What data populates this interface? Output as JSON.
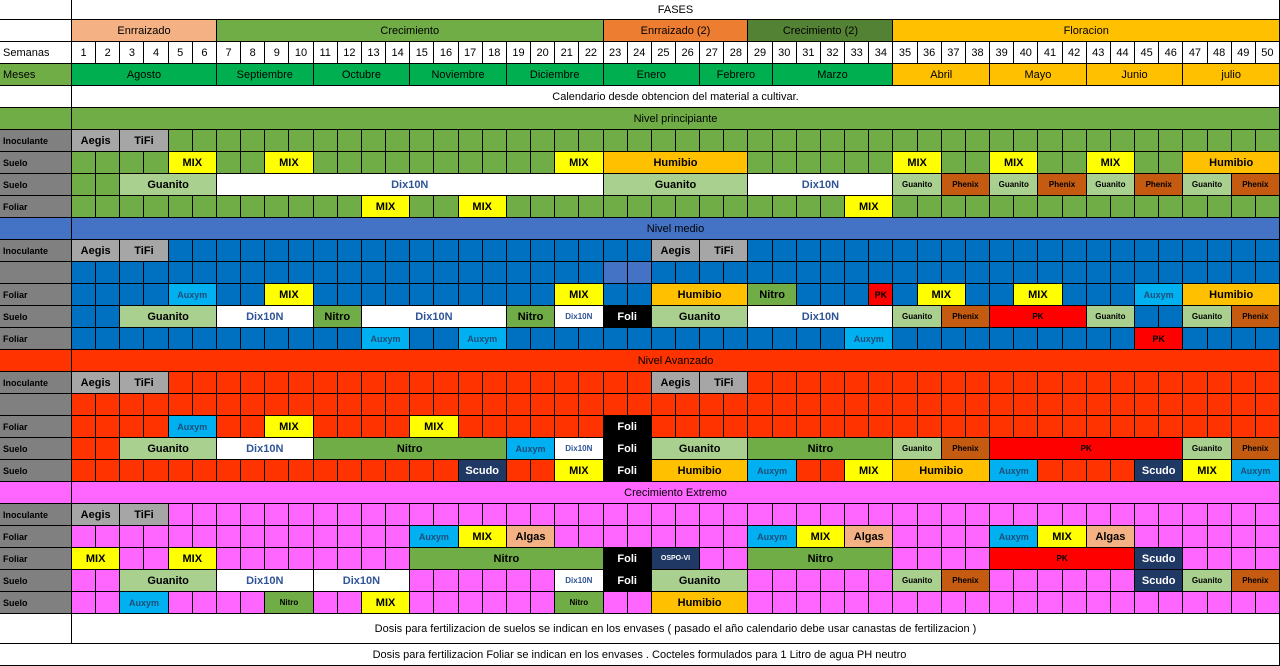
{
  "colors": {
    "enraiz": "#f4b183",
    "crec": "#70ad47",
    "enraiz2": "#ed7d31",
    "crec2": "#548235",
    "flor": "#ffc000",
    "mes_green": "#00b050",
    "gray": "#808080",
    "lightgray": "#a6a6a6",
    "yellow": "#ffff00",
    "orange": "#ffc000",
    "lightgreen": "#a9d08e",
    "white": "#ffffff",
    "blue": "#0070c0",
    "red": "#ff0000",
    "redorange": "#ff3300",
    "darkorange": "#c55a11",
    "pink": "#ff66ff",
    "cyan": "#00b0f0",
    "black": "#000000",
    "navy": "#203864",
    "salmon": "#f4b183",
    "green": "#70ad47"
  },
  "header": {
    "title": "FASES",
    "phases": [
      "Enrraizado",
      "Crecimiento",
      "Enrraizado (2)",
      "Crecimiento (2)",
      "Floracion"
    ],
    "semanas_label": "Semanas",
    "weeks": [
      "1",
      "2",
      "3",
      "4",
      "5",
      "6",
      "7",
      "8",
      "9",
      "10",
      "11",
      "12",
      "13",
      "14",
      "15",
      "16",
      "17",
      "18",
      "19",
      "20",
      "21",
      "22",
      "23",
      "24",
      "25",
      "26",
      "27",
      "28",
      "29",
      "30",
      "31",
      "32",
      "33",
      "34",
      "35",
      "36",
      "37",
      "38",
      "39",
      "40",
      "41",
      "42",
      "43",
      "44",
      "45",
      "46",
      "47",
      "48",
      "49",
      "50"
    ],
    "meses_label": "Meses",
    "months": [
      "Agosto",
      "Septiembre",
      "Octubre",
      "Noviembre",
      "Diciembre",
      "Enero",
      "Febrero",
      "Marzo",
      "Abril",
      "Mayo",
      "Junio",
      "julio"
    ],
    "calendar_note": "Calendario desde obtencion del material a cultivar."
  },
  "sections": {
    "principiante": {
      "title": "Nivel principiante",
      "rows": [
        {
          "label": "Inoculante",
          "bars": [
            {
              "text": "Aegis"
            },
            {
              "text": "TiFi"
            }
          ]
        },
        {
          "label": "Suelo",
          "bars": [
            {
              "text": "MIX"
            },
            {
              "text": "MIX"
            },
            {
              "text": "MIX"
            },
            {
              "text": "Humibio"
            },
            {
              "text": "MIX"
            },
            {
              "text": "MIX"
            },
            {
              "text": "MIX"
            },
            {
              "text": "Humibio"
            }
          ]
        },
        {
          "label": "Suelo",
          "bars": [
            {
              "text": "Guanito"
            },
            {
              "text": "Dix10N"
            },
            {
              "text": "Guanito"
            },
            {
              "text": "Dix10N"
            },
            {
              "text": "Guanito"
            },
            {
              "text": "Phenix"
            },
            {
              "text": "Guanito"
            },
            {
              "text": "Phenix"
            },
            {
              "text": "Guanito"
            },
            {
              "text": "Phenix"
            },
            {
              "text": "Guanito"
            },
            {
              "text": "Phenix"
            }
          ]
        },
        {
          "label": "Foliar",
          "bars": [
            {
              "text": "MIX"
            },
            {
              "text": "MIX"
            },
            {
              "text": "MIX"
            }
          ]
        }
      ]
    },
    "medio": {
      "title": "Nivel medio",
      "rows": [
        {
          "label": "Inoculante",
          "bars": [
            {
              "text": "Aegis"
            },
            {
              "text": "TiFi"
            },
            {
              "text": "Aegis"
            },
            {
              "text": "TiFi"
            }
          ]
        },
        {
          "label": "",
          "bars": []
        },
        {
          "label": "Foliar",
          "bars": [
            {
              "text": "Auxym"
            },
            {
              "text": "MIX"
            },
            {
              "text": "MIX"
            },
            {
              "text": "Humibio"
            },
            {
              "text": "Nitro"
            },
            {
              "text": "PK"
            },
            {
              "text": "MIX"
            },
            {
              "text": "MIX"
            },
            {
              "text": "Auxym"
            },
            {
              "text": "Humibio"
            }
          ]
        },
        {
          "label": "Suelo",
          "bars": [
            {
              "text": "Guanito"
            },
            {
              "text": "Dix10N"
            },
            {
              "text": "Nitro"
            },
            {
              "text": "Dix10N"
            },
            {
              "text": "Nitro"
            },
            {
              "text": "Dix10N"
            },
            {
              "text": "Foli"
            },
            {
              "text": "Guanito"
            },
            {
              "text": "Dix10N"
            },
            {
              "text": "Guanito"
            },
            {
              "text": "Phenix"
            },
            {
              "text": "PK"
            },
            {
              "text": "Guanito"
            },
            {
              "text": "Guanito"
            },
            {
              "text": "Phenix"
            }
          ]
        },
        {
          "label": "Foliar",
          "bars": [
            {
              "text": "Auxym"
            },
            {
              "text": "Auxym"
            },
            {
              "text": "Auxym"
            },
            {
              "text": "PK"
            }
          ]
        }
      ]
    },
    "avanzado": {
      "title": "Nivel Avanzado",
      "rows": [
        {
          "label": "Inoculante",
          "bars": [
            {
              "text": "Aegis"
            },
            {
              "text": "TiFi"
            },
            {
              "text": "Aegis"
            },
            {
              "text": "TiFi"
            }
          ]
        },
        {
          "label": "",
          "bars": []
        },
        {
          "label": "Foliar",
          "bars": [
            {
              "text": "Auxym"
            },
            {
              "text": "MIX"
            },
            {
              "text": "MIX"
            },
            {
              "text": "Foli"
            }
          ]
        },
        {
          "label": "Suelo",
          "bars": [
            {
              "text": "Guanito"
            },
            {
              "text": "Dix10N"
            },
            {
              "text": "Nitro"
            },
            {
              "text": "Auxym"
            },
            {
              "text": "Dix10N"
            },
            {
              "text": "Foli"
            },
            {
              "text": "Guanito"
            },
            {
              "text": "Nitro"
            },
            {
              "text": "Guanito"
            },
            {
              "text": "Phenix"
            },
            {
              "text": "PK"
            },
            {
              "text": "Guanito"
            },
            {
              "text": "Phenix"
            }
          ]
        },
        {
          "label": "Suelo",
          "bars": [
            {
              "text": "Scudo"
            },
            {
              "text": "MIX"
            },
            {
              "text": "Foli"
            },
            {
              "text": "Humibio"
            },
            {
              "text": "Auxym"
            },
            {
              "text": "MIX"
            },
            {
              "text": "Humibio"
            },
            {
              "text": "Auxym"
            },
            {
              "text": "Scudo"
            },
            {
              "text": "MIX"
            },
            {
              "text": "Auxym"
            }
          ]
        }
      ]
    },
    "extremo": {
      "title": "Crecimiento Extremo",
      "rows": [
        {
          "label": "Inoculante",
          "bars": [
            {
              "text": "Aegis"
            },
            {
              "text": "TiFi"
            }
          ]
        },
        {
          "label": "Foliar",
          "bars": [
            {
              "text": "Auxym"
            },
            {
              "text": "MIX"
            },
            {
              "text": "Algas"
            },
            {
              "text": "Auxym"
            },
            {
              "text": "MIX"
            },
            {
              "text": "Algas"
            },
            {
              "text": "Auxym"
            },
            {
              "text": "MIX"
            },
            {
              "text": "Algas"
            }
          ]
        },
        {
          "label": "Foliar",
          "bars": [
            {
              "text": "MIX"
            },
            {
              "text": "MIX"
            },
            {
              "text": "Nitro"
            },
            {
              "text": "Foli"
            },
            {
              "text": "OSPO-VI"
            },
            {
              "text": "Nitro"
            },
            {
              "text": "PK"
            },
            {
              "text": "Scudo"
            }
          ]
        },
        {
          "label": "Suelo",
          "bars": [
            {
              "text": "Guanito"
            },
            {
              "text": "Dix10N"
            },
            {
              "text": "Dix10N"
            },
            {
              "text": "Dix10N"
            },
            {
              "text": "Foli"
            },
            {
              "text": "Guanito"
            },
            {
              "text": "Guanito"
            },
            {
              "text": "Phenix"
            },
            {
              "text": "Scudo"
            },
            {
              "text": "Guanito"
            },
            {
              "text": "Phenix"
            }
          ]
        },
        {
          "label": "Suelo",
          "bars": [
            {
              "text": "Auxym"
            },
            {
              "text": "Nitro"
            },
            {
              "text": "MIX"
            },
            {
              "text": "Nitro"
            },
            {
              "text": "Humibio"
            }
          ]
        }
      ]
    }
  },
  "footer": {
    "note1": "Dosis para fertilizacion de suelos se indican en los envases ( pasado el año calendario debe usar canastas de fertilizacion )",
    "note2": "Dosis para fertilizacion Foliar se indican en los envases . Cocteles formulados para 1 Litro de agua PH neutro"
  }
}
